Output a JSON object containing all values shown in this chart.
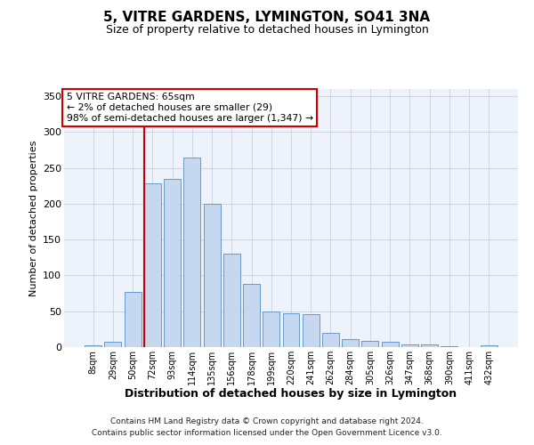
{
  "title": "5, VITRE GARDENS, LYMINGTON, SO41 3NA",
  "subtitle": "Size of property relative to detached houses in Lymington",
  "xlabel": "Distribution of detached houses by size in Lymington",
  "ylabel": "Number of detached properties",
  "categories": [
    "8sqm",
    "29sqm",
    "50sqm",
    "72sqm",
    "93sqm",
    "114sqm",
    "135sqm",
    "156sqm",
    "178sqm",
    "199sqm",
    "220sqm",
    "241sqm",
    "262sqm",
    "284sqm",
    "305sqm",
    "326sqm",
    "347sqm",
    "368sqm",
    "390sqm",
    "411sqm",
    "432sqm"
  ],
  "values": [
    2,
    7,
    77,
    228,
    235,
    265,
    200,
    130,
    88,
    50,
    47,
    46,
    20,
    11,
    9,
    7,
    4,
    4,
    1,
    0,
    2
  ],
  "bar_color": "#c5d8f0",
  "bar_edge_color": "#6699cc",
  "vline_color": "#cc0000",
  "annotation_text": "5 VITRE GARDENS: 65sqm\n← 2% of detached houses are smaller (29)\n98% of semi-detached houses are larger (1,347) →",
  "annotation_box_facecolor": "#ffffff",
  "annotation_box_edgecolor": "#cc0000",
  "footnote_line1": "Contains HM Land Registry data © Crown copyright and database right 2024.",
  "footnote_line2": "Contains public sector information licensed under the Open Government Licence v3.0.",
  "background_color": "#eef2fa",
  "ylim": [
    0,
    360
  ],
  "yticks": [
    0,
    50,
    100,
    150,
    200,
    250,
    300,
    350
  ],
  "title_fontsize": 11,
  "subtitle_fontsize": 9,
  "xlabel_fontsize": 9,
  "ylabel_fontsize": 8,
  "tick_fontsize": 8,
  "xtick_fontsize": 7
}
